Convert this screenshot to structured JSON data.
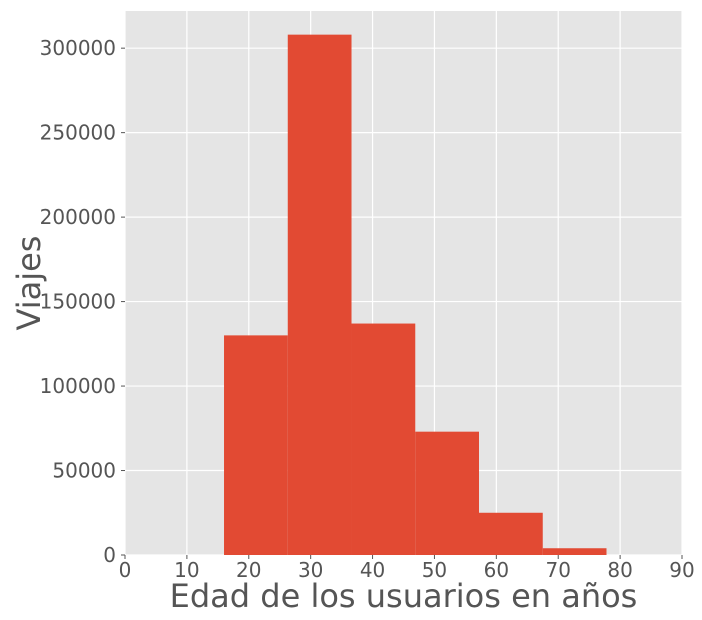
{
  "chart_data": {
    "type": "bar",
    "title": "",
    "xlabel": "Edad de los usuarios en años",
    "ylabel": "Viajes",
    "xlim": [
      0,
      90
    ],
    "ylim": [
      0,
      322000
    ],
    "xticks": [
      0,
      10,
      20,
      30,
      40,
      50,
      60,
      70,
      80,
      90
    ],
    "yticks": [
      0,
      50000,
      100000,
      150000,
      200000,
      250000,
      300000
    ],
    "bins": [
      {
        "start": 16.0,
        "end": 26.3,
        "value": 130000
      },
      {
        "start": 26.3,
        "end": 36.6,
        "value": 308000
      },
      {
        "start": 36.6,
        "end": 46.9,
        "value": 137000
      },
      {
        "start": 46.9,
        "end": 57.2,
        "value": 73000
      },
      {
        "start": 57.2,
        "end": 67.5,
        "value": 25000
      },
      {
        "start": 67.5,
        "end": 77.8,
        "value": 4000
      }
    ],
    "grid": true,
    "colors": {
      "bar": "#E24A33",
      "background": "#E5E5E5",
      "grid": "#FFFFFF",
      "text": "#555555"
    }
  }
}
